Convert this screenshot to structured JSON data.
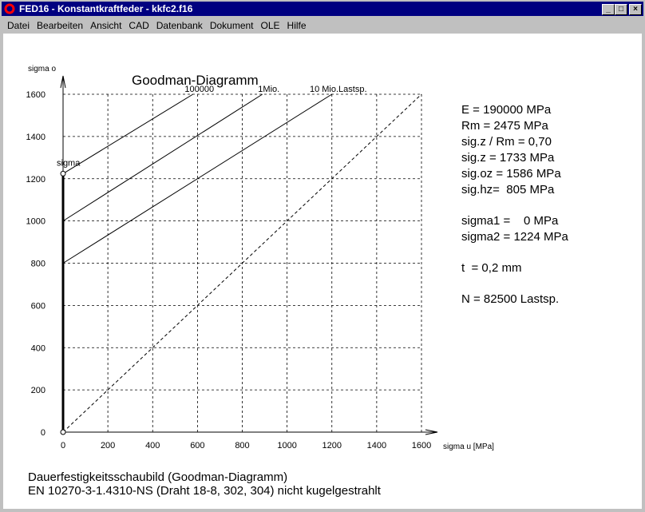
{
  "window": {
    "title": "FED16 - Konstantkraftfeder  -  kkfc2.f16",
    "menu": [
      "Datei",
      "Bearbeiten",
      "Ansicht",
      "CAD",
      "Datenbank",
      "Dokument",
      "OLE",
      "Hilfe"
    ]
  },
  "chart_data": {
    "type": "line",
    "title": "Goodman-Diagramm",
    "x_label": "sigma u [MPa]",
    "y_label": "sigma o",
    "xlim": [
      0,
      1600
    ],
    "ylim": [
      0,
      1600
    ],
    "xticks": [
      0,
      200,
      400,
      600,
      800,
      1000,
      1200,
      1400,
      1600
    ],
    "yticks": [
      0,
      200,
      400,
      600,
      800,
      1000,
      1200,
      1400,
      1600
    ],
    "grid": true,
    "color": "#000000",
    "series": [
      {
        "name": "100000",
        "x": [
          0,
          580
        ],
        "values": [
          1224,
          1600
        ]
      },
      {
        "name": "1Mio.",
        "x": [
          0,
          890
        ],
        "values": [
          1000,
          1600
        ]
      },
      {
        "name": "10 Mio.Lastsp.",
        "x": [
          0,
          1200
        ],
        "values": [
          800,
          1600
        ]
      },
      {
        "x": [
          0,
          1600
        ],
        "values": [
          0,
          1600
        ],
        "dashed": true
      }
    ],
    "sigma_line": {
      "name": "sigma",
      "x": [
        0,
        0
      ],
      "values": [
        0,
        1224
      ]
    },
    "info": [
      [
        "E = 190000 MPa",
        "Rm = 2475 MPa",
        "sig.z / Rm = 0,70",
        "sig.z = 1733 MPa",
        "sig.oz = 1586 MPa",
        "sig.hz=  805 MPa"
      ],
      [
        "sigma1 =    0 MPa",
        "sigma2 = 1224 MPa"
      ],
      [
        "t  = 0,2 mm"
      ],
      [
        "N = 82500 Lastsp."
      ]
    ],
    "footer": [
      "Dauerfestigkeitsschaubild (Goodman-Diagramm)",
      "EN 10270-3-1.4310-NS (Draht 18-8, 302, 304) nicht kugelgestrahlt"
    ]
  }
}
